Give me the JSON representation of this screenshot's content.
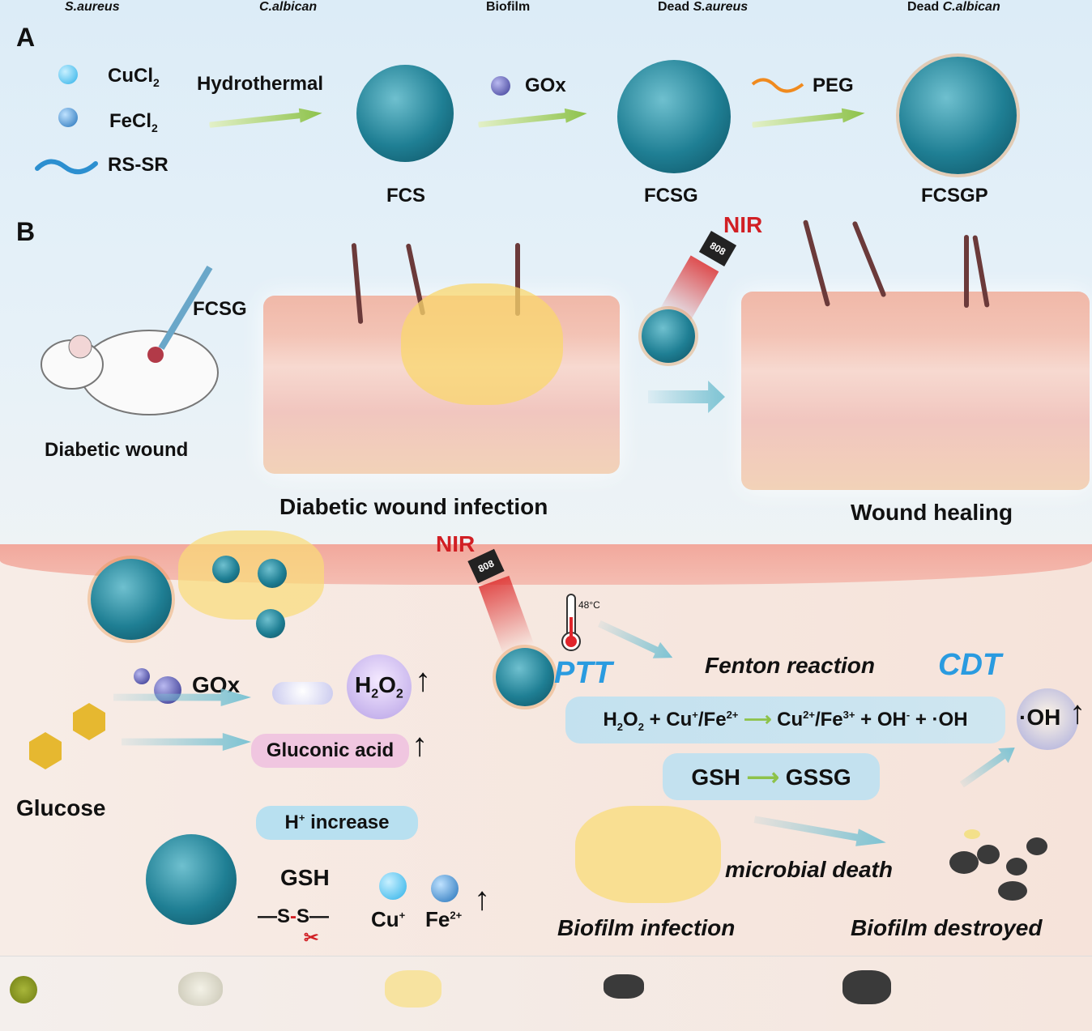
{
  "panel_a": {
    "label": "A",
    "reagents": [
      {
        "name": "CuCl",
        "sub": "2"
      },
      {
        "name": "FeCl",
        "sub": "2"
      },
      {
        "name": "RS-SR"
      }
    ],
    "step1": "Hydrothermal",
    "product1": "FCS",
    "step2": "GOx",
    "product2": "FCSG",
    "step3": "PEG",
    "product3": "FCSGP"
  },
  "panel_b": {
    "label": "B",
    "injection": "FCSG",
    "mouse_label": "Diabetic wound",
    "infection_label": "Diabetic wound infection",
    "nir": "NIR",
    "laser": "808",
    "healing_label": "Wound healing"
  },
  "mechanism": {
    "nir": "NIR",
    "laser": "808",
    "temperature": "48",
    "temp_unit": "°C",
    "gox": "GOx",
    "glucose": "Glucose",
    "h2o2": {
      "h": "H",
      "s1": "2",
      "o": "O",
      "s2": "2"
    },
    "gluconic": "Gluconic acid",
    "h_plus": {
      "h": "H",
      "sup": "+",
      "rest": " increase"
    },
    "gsh": "GSH",
    "ss": "S",
    "cu": {
      "t": "Cu",
      "sup": "+"
    },
    "fe": {
      "t": "Fe",
      "sup": "2+"
    },
    "ptt": "PTT",
    "fenton": "Fenton reaction",
    "cdt": "CDT",
    "equation": {
      "lhs": [
        "H",
        "2",
        "O",
        "2",
        " + Cu",
        "+",
        "/Fe",
        "2+"
      ],
      "rhs": [
        "Cu",
        "2+",
        "/Fe",
        "3+",
        " + OH",
        "-",
        " + ·OH"
      ]
    },
    "gsh_eq": {
      "from": "GSH",
      "to": "GSSG"
    },
    "oh": "·OH",
    "biofilm_infection": "Biofilm infection",
    "microbial_death": "microbial death",
    "biofilm_destroyed": "Biofilm destroyed"
  },
  "legend": [
    {
      "label": "S.aureus",
      "italic": true
    },
    {
      "label": "C.albican",
      "italic": true
    },
    {
      "label": "Biofilm"
    },
    {
      "prefix": "Dead ",
      "label": "S.aureus"
    },
    {
      "prefix": "Dead ",
      "label": "C.albican"
    }
  ],
  "colors": {
    "accent_blue": "#2a9be0",
    "nir_red": "#d11f24",
    "particle_teal": "#1f7f94",
    "arrow_green": "#8dc24a"
  }
}
